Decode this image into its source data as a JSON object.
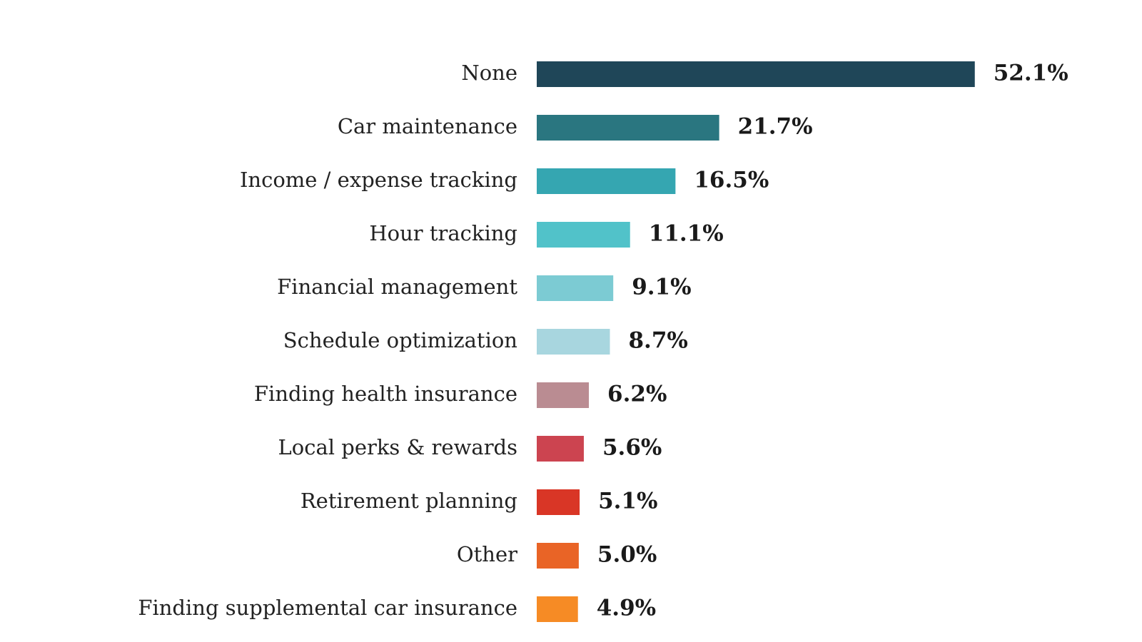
{
  "chart_data": {
    "type": "bar",
    "orientation": "horizontal",
    "categories": [
      "None",
      "Car maintenance",
      "Income / expense tracking",
      "Hour tracking",
      "Financial management",
      "Schedule optimization",
      "Finding health insurance",
      "Local perks & rewards",
      "Retirement planning",
      "Other",
      "Finding supplemental car insurance"
    ],
    "values": [
      52.1,
      21.7,
      16.5,
      11.1,
      9.1,
      8.7,
      6.2,
      5.6,
      5.1,
      5.0,
      4.9
    ],
    "value_labels": [
      "52.1%",
      "21.7%",
      "16.5%",
      "11.1%",
      "9.1%",
      "8.7%",
      "6.2%",
      "5.6%",
      "5.1%",
      "5.0%",
      "4.9%"
    ],
    "colors": [
      "#1f4658",
      "#2a7680",
      "#35a6b1",
      "#51c2c9",
      "#7ccbd3",
      "#a8d6df",
      "#ba8c92",
      "#cc4450",
      "#d93626",
      "#e96426",
      "#f68b25"
    ],
    "title": "",
    "xlabel": "",
    "ylabel": "",
    "grid": false,
    "legend": false
  }
}
